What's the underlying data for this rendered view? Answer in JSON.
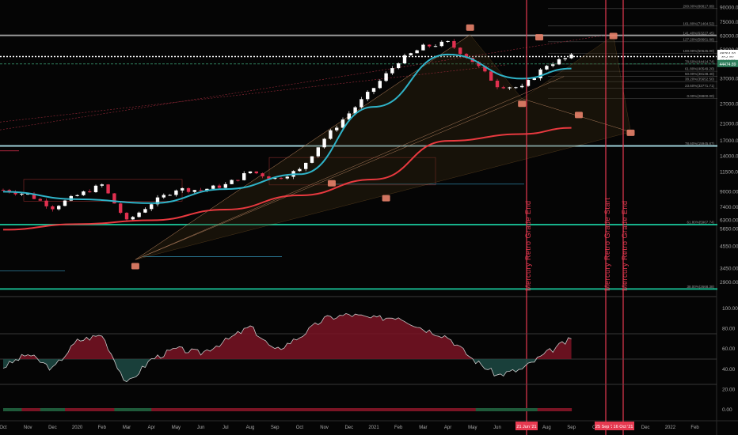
{
  "colors": {
    "background": "#050505",
    "candle_up": "#ffffff",
    "candle_down": "#e0304f",
    "ema": "#2fb3c8",
    "sma200": "#e8393f",
    "hline_light": "#aee6ef",
    "hline_green": "#19c59a",
    "mercury": "#e63950",
    "marker": "#e8826a",
    "osc_up_fill": "#7a1424",
    "osc_down_fill": "#1d4a44",
    "osc_line": "#c8c8c8"
  },
  "price_axis": {
    "labels": [
      "90000.00",
      "75000.00",
      "63000.00",
      "53000.00",
      "44000.00",
      "37000.00",
      "27000.00",
      "21000.00",
      "17000.00",
      "14000.00",
      "11500.00",
      "9000.00",
      "7400.00",
      "6300.00",
      "5650.00",
      "4550.00",
      "3450.00",
      "2900.00"
    ],
    "tags": [
      {
        "text": "48764.91",
        "bg": "#ffffff",
        "fg": "#111111"
      },
      {
        "text": "49d 4%",
        "bg": "#ffffff",
        "fg": "#111111"
      },
      {
        "text": "00:19:33",
        "bg": "#ffffff",
        "fg": "#111111"
      },
      {
        "text": "44474.89",
        "bg": "#2e7d5b",
        "fg": "#ffffff"
      }
    ]
  },
  "osc_axis": {
    "labels": [
      "100.00",
      "80.00",
      "60.00",
      "40.00",
      "20.00",
      "0.00"
    ]
  },
  "x_axis": {
    "labels": [
      "Oct",
      "Nov",
      "Dec",
      "2020",
      "Feb",
      "Mar",
      "Apr",
      "May",
      "Jun",
      "Jul",
      "Aug",
      "Sep",
      "Oct",
      "Nov",
      "Dec",
      "2021",
      "Feb",
      "Mar",
      "Apr",
      "May",
      "Jun",
      "Jul",
      "Aug",
      "Sep",
      "Oct",
      "Nov",
      "Dec",
      "2022",
      "Feb"
    ],
    "date_badges": [
      "21 Jun '21",
      "25 Sep '21",
      "16 Oct '21"
    ]
  },
  "fib_levels": [
    {
      "label": "200.00%(88817.89)"
    },
    {
      "label": "161.80%(71464.52)"
    },
    {
      "label": "141.40%(63227.45)"
    },
    {
      "label": "127.20%(58661.88)"
    },
    {
      "label": "100.00%(50645.00)"
    },
    {
      "label": "78.60%(44414.74)"
    },
    {
      "label": "61.80%(40549.20)"
    },
    {
      "label": "50.00%(38138.40)"
    },
    {
      "label": "38.20%(35652.50)"
    },
    {
      "label": "23.60%(32771.71)"
    },
    {
      "label": "0.00%(28800.00)"
    },
    {
      "label": "78.60%(15945.87)"
    },
    {
      "label": "61.80%(5967.74)"
    },
    {
      "label": "38.00%(2668.38)"
    }
  ],
  "mercury_lines": [
    {
      "label": "Mercury Retro Grade End"
    },
    {
      "label": "Mercury Retro Grade Start"
    },
    {
      "label": "Mercury Retro Grade End"
    }
  ],
  "chart_data": {
    "type": "candlestick",
    "series": [
      {
        "name": "BTC price",
        "x": [
          "2019-10",
          "2019-11",
          "2019-12",
          "2020-01",
          "2020-02",
          "2020-03",
          "2020-04",
          "2020-05",
          "2020-06",
          "2020-07",
          "2020-08",
          "2020-09",
          "2020-10",
          "2020-11",
          "2020-12",
          "2021-01",
          "2021-02",
          "2021-03",
          "2021-04",
          "2021-05",
          "2021-06",
          "2021-07",
          "2021-08",
          "2021-09"
        ],
        "y": [
          9200,
          8700,
          7400,
          8600,
          9800,
          6200,
          7800,
          9300,
          9200,
          9800,
          11600,
          10600,
          11800,
          17500,
          24000,
          33000,
          46000,
          55000,
          58000,
          46000,
          34000,
          33000,
          44000,
          48700
        ]
      },
      {
        "name": "EMA",
        "x": [
          "2019-10",
          "2020-01",
          "2020-04",
          "2020-07",
          "2020-10",
          "2021-01",
          "2021-04",
          "2021-07",
          "2021-09"
        ],
        "y": [
          9000,
          8200,
          7800,
          9300,
          11200,
          26000,
          50000,
          37000,
          42000
        ]
      },
      {
        "name": "MA",
        "x": [
          "2019-10",
          "2020-01",
          "2020-04",
          "2020-07",
          "2020-10",
          "2021-01",
          "2021-04",
          "2021-07",
          "2021-09"
        ],
        "y": [
          5600,
          6000,
          6300,
          7200,
          8600,
          10500,
          17000,
          18500,
          20000
        ]
      },
      {
        "name": "Oscillator",
        "x": [
          "2019-10",
          "2019-11",
          "2019-12",
          "2020-01",
          "2020-02",
          "2020-03",
          "2020-04",
          "2020-05",
          "2020-06",
          "2020-07",
          "2020-08",
          "2020-09",
          "2020-10",
          "2020-11",
          "2020-12",
          "2021-01",
          "2021-02",
          "2021-03",
          "2021-04",
          "2021-05",
          "2021-06",
          "2021-07",
          "2021-08",
          "2021-09"
        ],
        "y": [
          42,
          55,
          40,
          68,
          74,
          25,
          50,
          60,
          56,
          68,
          82,
          58,
          72,
          90,
          94,
          90,
          92,
          80,
          72,
          50,
          34,
          40,
          56,
          70
        ]
      }
    ],
    "y_scale": "log",
    "ylim": [
      2500,
      95000
    ],
    "osc_ylim": [
      0,
      100
    ],
    "grid": false
  }
}
